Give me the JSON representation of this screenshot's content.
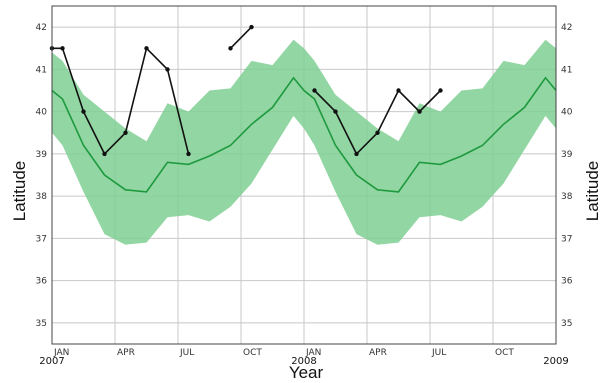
{
  "chart_data": {
    "type": "line",
    "title": "",
    "xlabel": "Year",
    "ylabel": "Latitude",
    "ylabel_right": "Latitude",
    "ylim": [
      34.5,
      42.5
    ],
    "xlim": [
      0,
      24
    ],
    "yticks": [
      35,
      36,
      37,
      38,
      39,
      40,
      41,
      42
    ],
    "ytick_labels": [
      "35",
      "36",
      "37",
      "38",
      "39",
      "40",
      "41",
      "42"
    ],
    "month_ticks": [
      {
        "x": 0,
        "label": "JAN"
      },
      {
        "x": 3,
        "label": "APR"
      },
      {
        "x": 6,
        "label": "JUL"
      },
      {
        "x": 9,
        "label": "OCT"
      },
      {
        "x": 12,
        "label": "JAN"
      },
      {
        "x": 15,
        "label": "APR"
      },
      {
        "x": 18,
        "label": "JUL"
      },
      {
        "x": 21,
        "label": "OCT"
      }
    ],
    "year_ticks": [
      {
        "x": 0,
        "label": "2007"
      },
      {
        "x": 12,
        "label": "2008"
      },
      {
        "x": 24,
        "label": "2009"
      }
    ],
    "grid": true,
    "colors": {
      "band": "#7fcf93",
      "mean": "#1e9a3e",
      "observed": "#111111",
      "grid": "#c8c8c8"
    },
    "climatology": {
      "x": [
        0,
        0.5,
        1.5,
        2.5,
        3.5,
        4.5,
        5.5,
        6.5,
        7.5,
        8.5,
        9.5,
        10.5,
        11.5,
        12,
        12.5,
        13.5,
        14.5,
        15.5,
        16.5,
        17.5,
        18.5,
        19.5,
        20.5,
        21.5,
        22.5,
        23.5,
        24
      ],
      "mean": [
        40.5,
        40.3,
        39.2,
        38.5,
        38.15,
        38.1,
        38.8,
        38.75,
        38.95,
        39.2,
        39.7,
        40.1,
        40.8,
        40.5,
        40.3,
        39.2,
        38.5,
        38.15,
        38.1,
        38.8,
        38.75,
        38.95,
        39.2,
        39.7,
        40.1,
        40.8,
        40.5
      ],
      "lower": [
        39.5,
        39.2,
        38.1,
        37.1,
        36.85,
        36.9,
        37.5,
        37.55,
        37.4,
        37.75,
        38.3,
        39.1,
        39.9,
        39.6,
        39.2,
        38.1,
        37.1,
        36.85,
        36.9,
        37.5,
        37.55,
        37.4,
        37.75,
        38.3,
        39.1,
        39.9,
        39.6
      ],
      "upper": [
        41.4,
        41.2,
        40.4,
        40.0,
        39.6,
        39.3,
        40.2,
        40.0,
        40.5,
        40.55,
        41.2,
        41.1,
        41.7,
        41.5,
        41.2,
        40.4,
        40.0,
        39.6,
        39.3,
        40.2,
        40.0,
        40.5,
        40.55,
        41.2,
        41.1,
        41.7,
        41.5
      ]
    },
    "observed_segments": [
      {
        "x": [
          0,
          0.5,
          1.5,
          2.5,
          3.5,
          4.5,
          5.5,
          6.5
        ],
        "y": [
          41.5,
          41.5,
          40.0,
          39.0,
          39.5,
          41.5,
          41.0,
          39.0
        ]
      },
      {
        "x": [
          8.5,
          9.5
        ],
        "y": [
          41.5,
          42.0
        ]
      },
      {
        "x": [
          12.5,
          13.5,
          14.5,
          15.5,
          16.5,
          17.5,
          18.5
        ],
        "y": [
          40.5,
          40.0,
          39.0,
          39.5,
          40.5,
          40.0,
          40.5
        ]
      }
    ]
  }
}
